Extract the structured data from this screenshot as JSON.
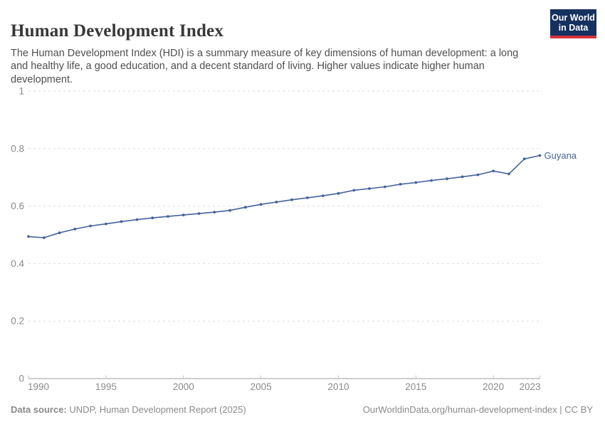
{
  "header": {
    "title": "Human Development Index",
    "subtitle": "The Human Development Index (HDI) is a summary measure of key dimensions of human development: a long and healthy life, a good education, and a decent standard of living. Higher values indicate higher human development.",
    "logo": {
      "line1": "Our World",
      "line2": "in Data",
      "bg_color": "#15315f",
      "accent_color": "#d6333f"
    }
  },
  "chart_data": {
    "type": "line",
    "title": "Human Development Index",
    "xlabel": "",
    "ylabel": "",
    "xlim": [
      1990,
      2023
    ],
    "ylim": [
      0,
      1
    ],
    "grid": "horizontal-dashed",
    "legend_position": "end-of-line-label",
    "x_ticks": [
      1990,
      1995,
      2000,
      2005,
      2010,
      2015,
      2020,
      2023
    ],
    "y_ticks": [
      0,
      0.2,
      0.4,
      0.6,
      0.8,
      1
    ],
    "y_tick_labels": [
      "0",
      "0.2",
      "0.4",
      "0.6",
      "0.8",
      "1"
    ],
    "series": [
      {
        "name": "Guyana",
        "color": "#44639c",
        "x": [
          1990,
          1991,
          1992,
          1993,
          1994,
          1995,
          1996,
          1997,
          1998,
          1999,
          2000,
          2001,
          2002,
          2003,
          2004,
          2005,
          2006,
          2007,
          2008,
          2009,
          2010,
          2011,
          2012,
          2013,
          2014,
          2015,
          2016,
          2017,
          2018,
          2019,
          2020,
          2021,
          2022,
          2023
        ],
        "values": [
          0.494,
          0.49,
          0.507,
          0.52,
          0.531,
          0.538,
          0.546,
          0.553,
          0.559,
          0.564,
          0.569,
          0.574,
          0.579,
          0.585,
          0.596,
          0.606,
          0.614,
          0.622,
          0.629,
          0.636,
          0.644,
          0.655,
          0.661,
          0.667,
          0.676,
          0.682,
          0.689,
          0.695,
          0.702,
          0.709,
          0.722,
          0.712,
          0.764,
          0.776
        ]
      }
    ]
  },
  "footer": {
    "source_label": "Data source:",
    "source_text": " UNDP, Human Development Report (2025)",
    "attribution": "OurWorldinData.org/human-development-index | CC BY"
  },
  "colors": {
    "title": "#383838",
    "subtitle": "#4f4f4f",
    "tick_label": "#8b8b8b",
    "gridline": "#dedede",
    "axis": "#9e9e9e",
    "tick": "#c2c2c2",
    "series": "#44639c"
  }
}
